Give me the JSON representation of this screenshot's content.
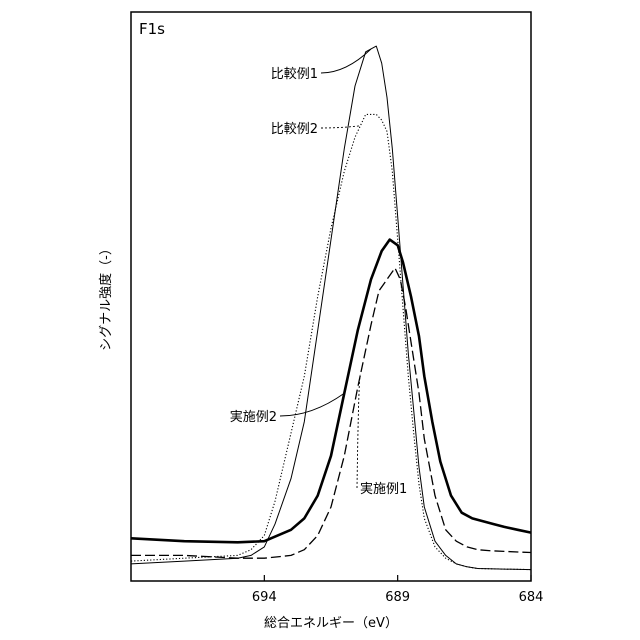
{
  "chart_data": {
    "type": "line",
    "panel_label": "F1s",
    "xlabel": "総合エネルギー（eV）",
    "ylabel": "シグナル強度（-）",
    "xlim": [
      699,
      684
    ],
    "x_reversed": true,
    "ylim": [
      0,
      100
    ],
    "xticks": [
      694,
      689,
      684
    ],
    "grid": false,
    "series": [
      {
        "name": "比較例1",
        "style": "thin-solid",
        "x": [
          699,
          697,
          695,
          694.5,
          694,
          693.6,
          693,
          692.5,
          692,
          691.5,
          691,
          690.6,
          690.2,
          689.8,
          689.6,
          689.4,
          689.2,
          689.0,
          688.8,
          688.6,
          688.4,
          688.2,
          688.0,
          687.6,
          687.2,
          686.8,
          686.4,
          686,
          685,
          684
        ],
        "y": [
          3,
          3.5,
          4,
          4.5,
          6,
          10,
          18,
          28,
          44,
          60,
          76,
          87,
          93,
          94,
          91,
          85,
          76,
          64,
          52,
          40,
          30,
          20,
          13,
          7,
          4.5,
          3,
          2.5,
          2.2,
          2.1,
          2
        ]
      },
      {
        "name": "比較例2",
        "style": "dotted",
        "x": [
          699,
          697,
          695,
          694.5,
          694,
          693.6,
          693,
          692.5,
          692,
          691.5,
          691,
          690.6,
          690.2,
          689.8,
          689.6,
          689.4,
          689.2,
          689.0,
          688.8,
          688.6,
          688.4,
          688.2,
          688.0,
          687.6,
          687.2,
          686.8,
          686.4,
          686,
          685,
          684
        ],
        "y": [
          3.5,
          4,
          4.5,
          5.5,
          8,
          14,
          26,
          36,
          50,
          62,
          72,
          78,
          82,
          82,
          81,
          79,
          72,
          60,
          48,
          36,
          26,
          17,
          11,
          6,
          4,
          3,
          2.5,
          2.2,
          2.1,
          2
        ]
      },
      {
        "name": "実施例2",
        "style": "thick-solid",
        "x": [
          699,
          697,
          695,
          694,
          693,
          692.5,
          692,
          691.5,
          691,
          690.5,
          690,
          689.6,
          689.3,
          689.0,
          688.8,
          688.5,
          688.2,
          688.0,
          687.7,
          687.4,
          687,
          686.6,
          686.2,
          685.8,
          685.4,
          685,
          684.5,
          684
        ],
        "y": [
          7.5,
          7,
          6.8,
          7,
          9,
          11,
          15,
          22,
          33,
          44,
          53,
          58,
          60,
          59,
          56,
          50,
          43,
          36,
          28,
          21,
          15,
          12,
          11,
          10.5,
          10,
          9.5,
          9,
          8.5
        ]
      },
      {
        "name": "実施例1",
        "style": "dashed",
        "x": [
          699,
          697,
          695,
          694,
          693,
          692.5,
          692,
          691.5,
          691,
          690.5,
          690,
          689.7,
          689.4,
          689.1,
          688.9,
          688.7,
          688.5,
          688.2,
          688,
          687.6,
          687.2,
          686.8,
          686.4,
          686,
          685.5,
          685,
          684.5,
          684
        ],
        "y": [
          4.5,
          4.5,
          4,
          4,
          4.5,
          5.5,
          8,
          13,
          22,
          34,
          45,
          51,
          53,
          55,
          53,
          48,
          42,
          33,
          25,
          15,
          9,
          7,
          6,
          5.5,
          5.3,
          5.2,
          5.1,
          5
        ]
      }
    ],
    "annotations": [
      {
        "label": "比較例1",
        "series": "比較例1",
        "at_x": 690.0
      },
      {
        "label": "比較例2",
        "series": "比較例2",
        "at_x": 690.4
      },
      {
        "label": "実施例2",
        "series": "実施例2",
        "at_x": 691.0
      },
      {
        "label": "実施例1",
        "series": "実施例1",
        "at_x": 690.4
      }
    ]
  }
}
